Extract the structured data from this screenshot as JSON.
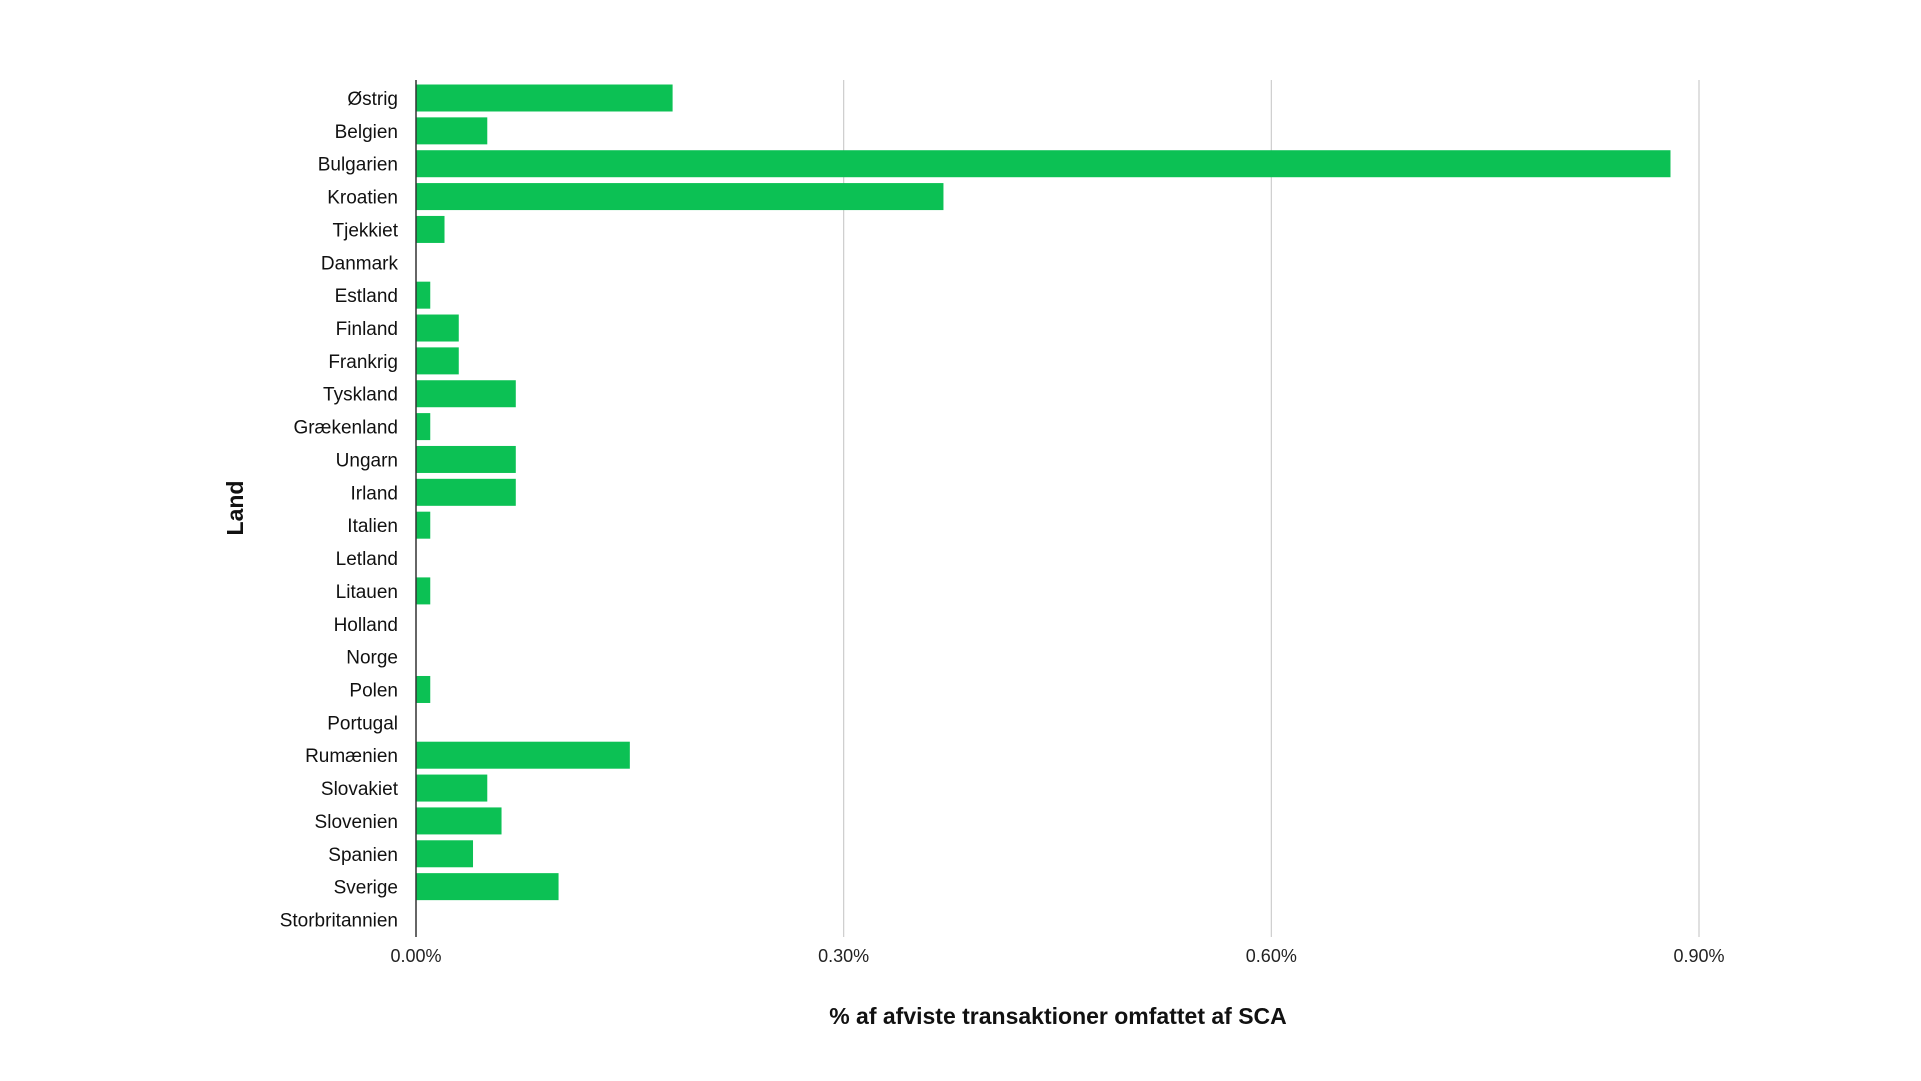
{
  "chart_data": {
    "type": "bar",
    "orientation": "horizontal",
    "categories": [
      "Østrig",
      "Belgien",
      "Bulgarien",
      "Kroatien",
      "Tjekkiet",
      "Danmark",
      "Estland",
      "Finland",
      "Frankrig",
      "Tyskland",
      "Grækenland",
      "Ungarn",
      "Irland",
      "Italien",
      "Letland",
      "Litauen",
      "Holland",
      "Norge",
      "Polen",
      "Portugal",
      "Rumænien",
      "Slovakiet",
      "Slovenien",
      "Spanien",
      "Sverige",
      "Storbritannien"
    ],
    "values": [
      0.18,
      0.05,
      0.88,
      0.37,
      0.02,
      0.0,
      0.01,
      0.03,
      0.03,
      0.07,
      0.01,
      0.07,
      0.07,
      0.01,
      0.0,
      0.01,
      0.0,
      0.0,
      0.01,
      0.0,
      0.15,
      0.05,
      0.06,
      0.04,
      0.1,
      0.0
    ],
    "xlabel": "% af afviste transaktioner omfattet af SCA",
    "ylabel": "Land",
    "xlim": [
      0,
      0.9
    ],
    "xticks": [
      "0.00%",
      "0.30%",
      "0.60%",
      "0.90%"
    ],
    "xtick_values": [
      0,
      0.3,
      0.6,
      0.9
    ],
    "grid": "vertical",
    "bar_color": "#0cc154",
    "grid_color": "#cccccc",
    "axis_color": "#333333"
  }
}
